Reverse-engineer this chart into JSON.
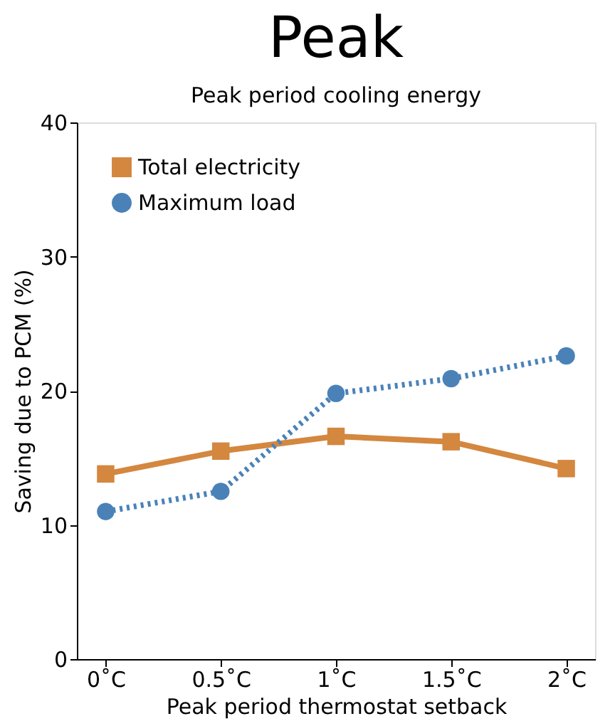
{
  "chart_data": {
    "type": "line",
    "title": "Peak",
    "subtitle": "Peak period cooling energy",
    "xlabel": "Peak period thermostat setback",
    "ylabel": "Saving due to PCM (%)",
    "categories": [
      "0˚C",
      "0.5˚C",
      "1˚C",
      "1.5˚C",
      "2˚C"
    ],
    "series": [
      {
        "name": "Total electricity",
        "color": "#d4873f",
        "marker": "square",
        "line_style": "solid",
        "values": [
          13.8,
          15.5,
          16.6,
          16.2,
          14.2
        ]
      },
      {
        "name": "Maximum load",
        "color": "#4a82b8",
        "marker": "circle",
        "line_style": "dotted",
        "values": [
          11.0,
          12.5,
          19.8,
          20.9,
          22.6
        ]
      }
    ],
    "ylim": [
      0,
      40
    ],
    "yticks": [
      0,
      10,
      20,
      30,
      40
    ],
    "grid": false,
    "legend": "top left"
  }
}
